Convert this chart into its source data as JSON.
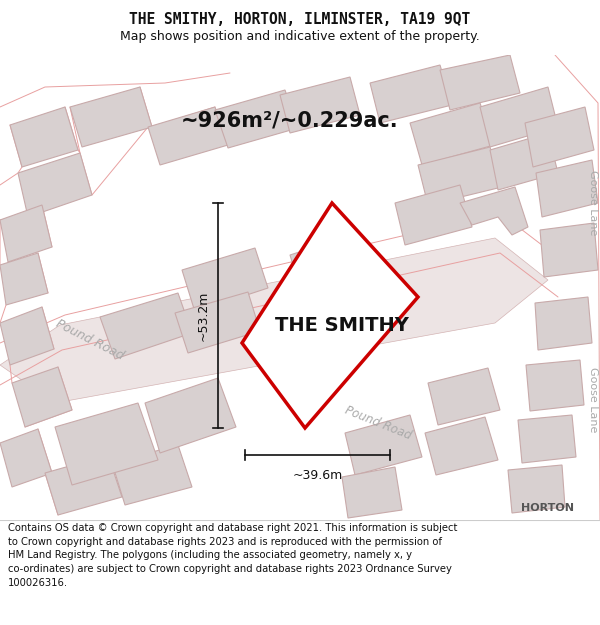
{
  "title": "THE SMITHY, HORTON, ILMINSTER, TA19 9QT",
  "subtitle": "Map shows position and indicative extent of the property.",
  "area_label": "~926m²/~0.229ac.",
  "property_label": "THE SMITHY",
  "dim_vertical": "~53.2m",
  "dim_horizontal": "~39.6m",
  "road_label_left": "Pound Road",
  "road_label_right": "Pound Road",
  "side_label_top": "Goose Lane",
  "side_label_bottom": "Goose Lane",
  "corner_label": "HORTON",
  "footer": "Contains OS data © Crown copyright and database right 2021. This information is subject to Crown copyright and database rights 2023 and is reproduced with the permission of HM Land Registry. The polygons (including the associated geometry, namely x, y co-ordinates) are subject to Crown copyright and database rights 2023 Ordnance Survey 100026316.",
  "map_bg": "#faf6f6",
  "road_fill": "#ede4e4",
  "road_edge": "#d4b4b4",
  "bldg_fill": "#d8d0d0",
  "bldg_edge": "#c8aaaa",
  "prop_fill": "#ffffff",
  "prop_edge": "#cc0000",
  "prop_lw": 2.5,
  "dim_color": "#111111",
  "road_text_color": "#aaaaaa",
  "goose_color": "#aaaaaa",
  "horton_color": "#555555",
  "header_title_size": 10.5,
  "header_sub_size": 9.0,
  "area_label_size": 15,
  "property_label_size": 14,
  "footer_size": 7.2
}
